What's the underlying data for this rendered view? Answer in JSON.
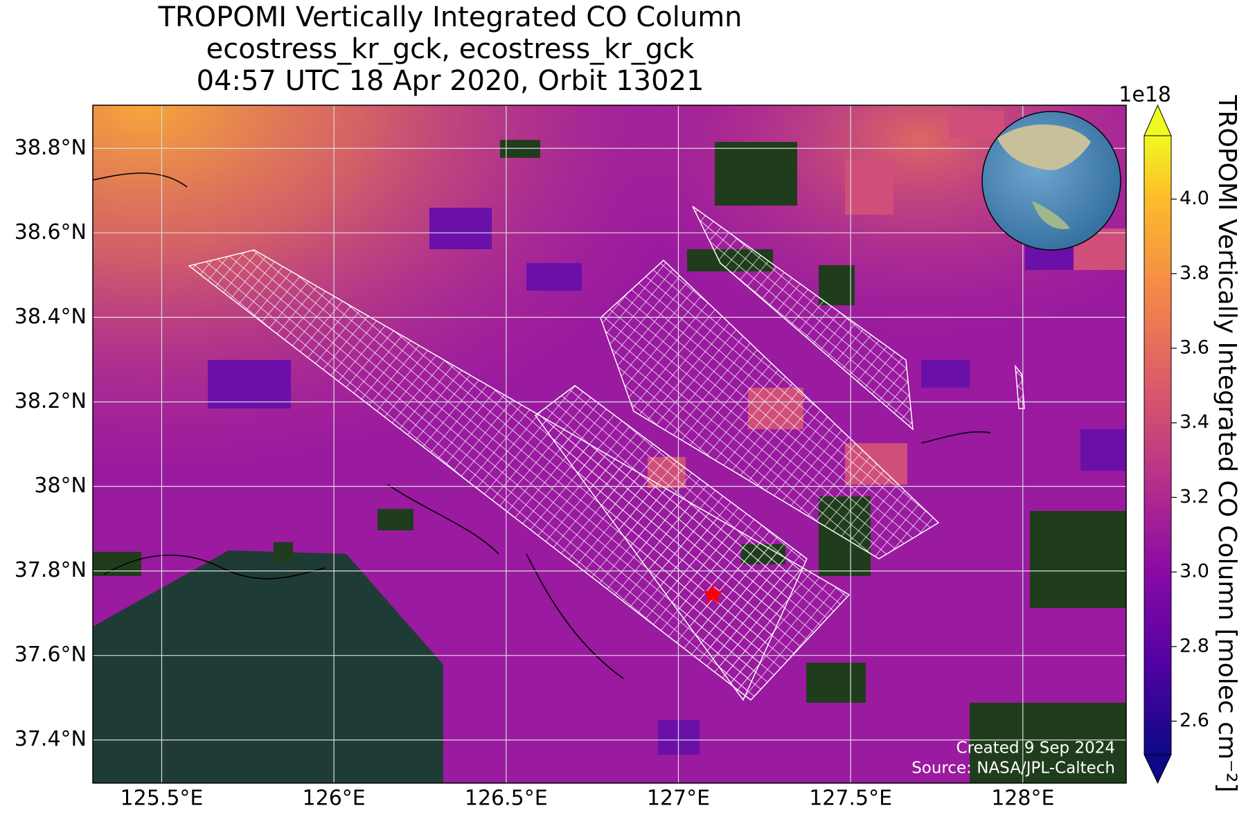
{
  "chart_data": {
    "type": "map",
    "title": [
      "TROPOMI Vertically Integrated CO Column",
      "ecostress_kr_gck, ecostress_kr_gck",
      "04:57 UTC 18 Apr 2020, Orbit 13021"
    ],
    "xlim": [
      125.3,
      128.3
    ],
    "ylim": [
      37.298,
      38.902
    ],
    "xticks": [
      {
        "value": 125.5,
        "label": "125.5°E"
      },
      {
        "value": 126,
        "label": "126°E"
      },
      {
        "value": 126.5,
        "label": "126.5°E"
      },
      {
        "value": 127,
        "label": "127°E"
      },
      {
        "value": 127.5,
        "label": "127.5°E"
      },
      {
        "value": 128,
        "label": "128°E"
      }
    ],
    "yticks": [
      {
        "value": 37.4,
        "label": "37.4°N"
      },
      {
        "value": 37.6,
        "label": "37.6°N"
      },
      {
        "value": 37.8,
        "label": "37.8°N"
      },
      {
        "value": 38.0,
        "label": "38°N"
      },
      {
        "value": 38.2,
        "label": "38.2°N"
      },
      {
        "value": 38.4,
        "label": "38.4°N"
      },
      {
        "value": 38.6,
        "label": "38.6°N"
      },
      {
        "value": 38.8,
        "label": "38.8°N"
      }
    ],
    "grid": true,
    "site": {
      "lon": 127.1,
      "lat": 37.744,
      "color": "#ff0000"
    },
    "colorbar": {
      "label": "TROPOMI Vertically Integrated CO Column [molec cm⁻²]",
      "offset_label": "1e18",
      "lim": [
        2.51,
        4.17
      ],
      "ticks": [
        2.6,
        2.8,
        {
          "value": 3,
          "label": "3.0"
        },
        3.2,
        3.4,
        3.6,
        3.8,
        {
          "value": 4,
          "label": "4.0"
        }
      ],
      "colormap": "plasma"
    },
    "annotations": [
      "Created 9 Sep 2024",
      "Source: NASA/JPL-Caltech"
    ]
  }
}
